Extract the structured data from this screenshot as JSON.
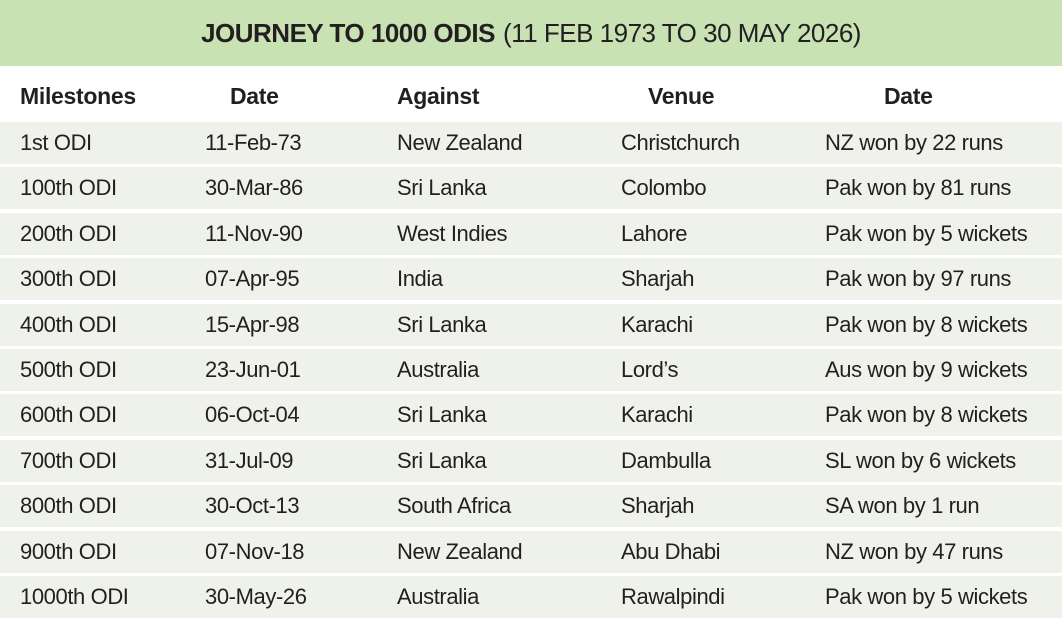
{
  "header": {
    "title": "JOURNEY TO 1000 ODIS",
    "subtitle": "(11 FEB 1973 TO 30 MAY 2026)"
  },
  "table": {
    "columns": [
      "Milestones",
      "Date",
      "Against",
      "Venue",
      "Date"
    ],
    "rows": [
      [
        "1st ODI",
        "11-Feb-73",
        "New Zealand",
        "Christchurch",
        "NZ won by 22 runs"
      ],
      [
        "100th ODI",
        "30-Mar-86",
        "Sri Lanka",
        "Colombo",
        "Pak won by 81 runs"
      ],
      [
        "200th ODI",
        "11-Nov-90",
        "West Indies",
        "Lahore",
        "Pak won by 5 wickets"
      ],
      [
        "300th ODI",
        "07-Apr-95",
        "India",
        "Sharjah",
        "Pak won by 97 runs"
      ],
      [
        "400th ODI",
        "15-Apr-98",
        "Sri Lanka",
        "Karachi",
        "Pak won by 8 wickets"
      ],
      [
        "500th ODI",
        "23-Jun-01",
        "Australia",
        "Lord’s",
        "Aus won by 9 wickets"
      ],
      [
        "600th ODI",
        "06-Oct-04",
        "Sri Lanka",
        "Karachi",
        "Pak won by 8 wickets"
      ],
      [
        "700th ODI",
        "31-Jul-09",
        "Sri Lanka",
        "Dambulla",
        "SL won by 6 wickets"
      ],
      [
        "800th ODI",
        "30-Oct-13",
        "South Africa",
        "Sharjah",
        "SA won by 1 run"
      ],
      [
        "900th ODI",
        "07-Nov-18",
        "New Zealand",
        "Abu Dhabi",
        "NZ won by 47 runs"
      ],
      [
        "1000th ODI",
        "30-May-26",
        "Australia",
        "Rawalpindi",
        "Pak won by 5 wickets"
      ]
    ]
  }
}
